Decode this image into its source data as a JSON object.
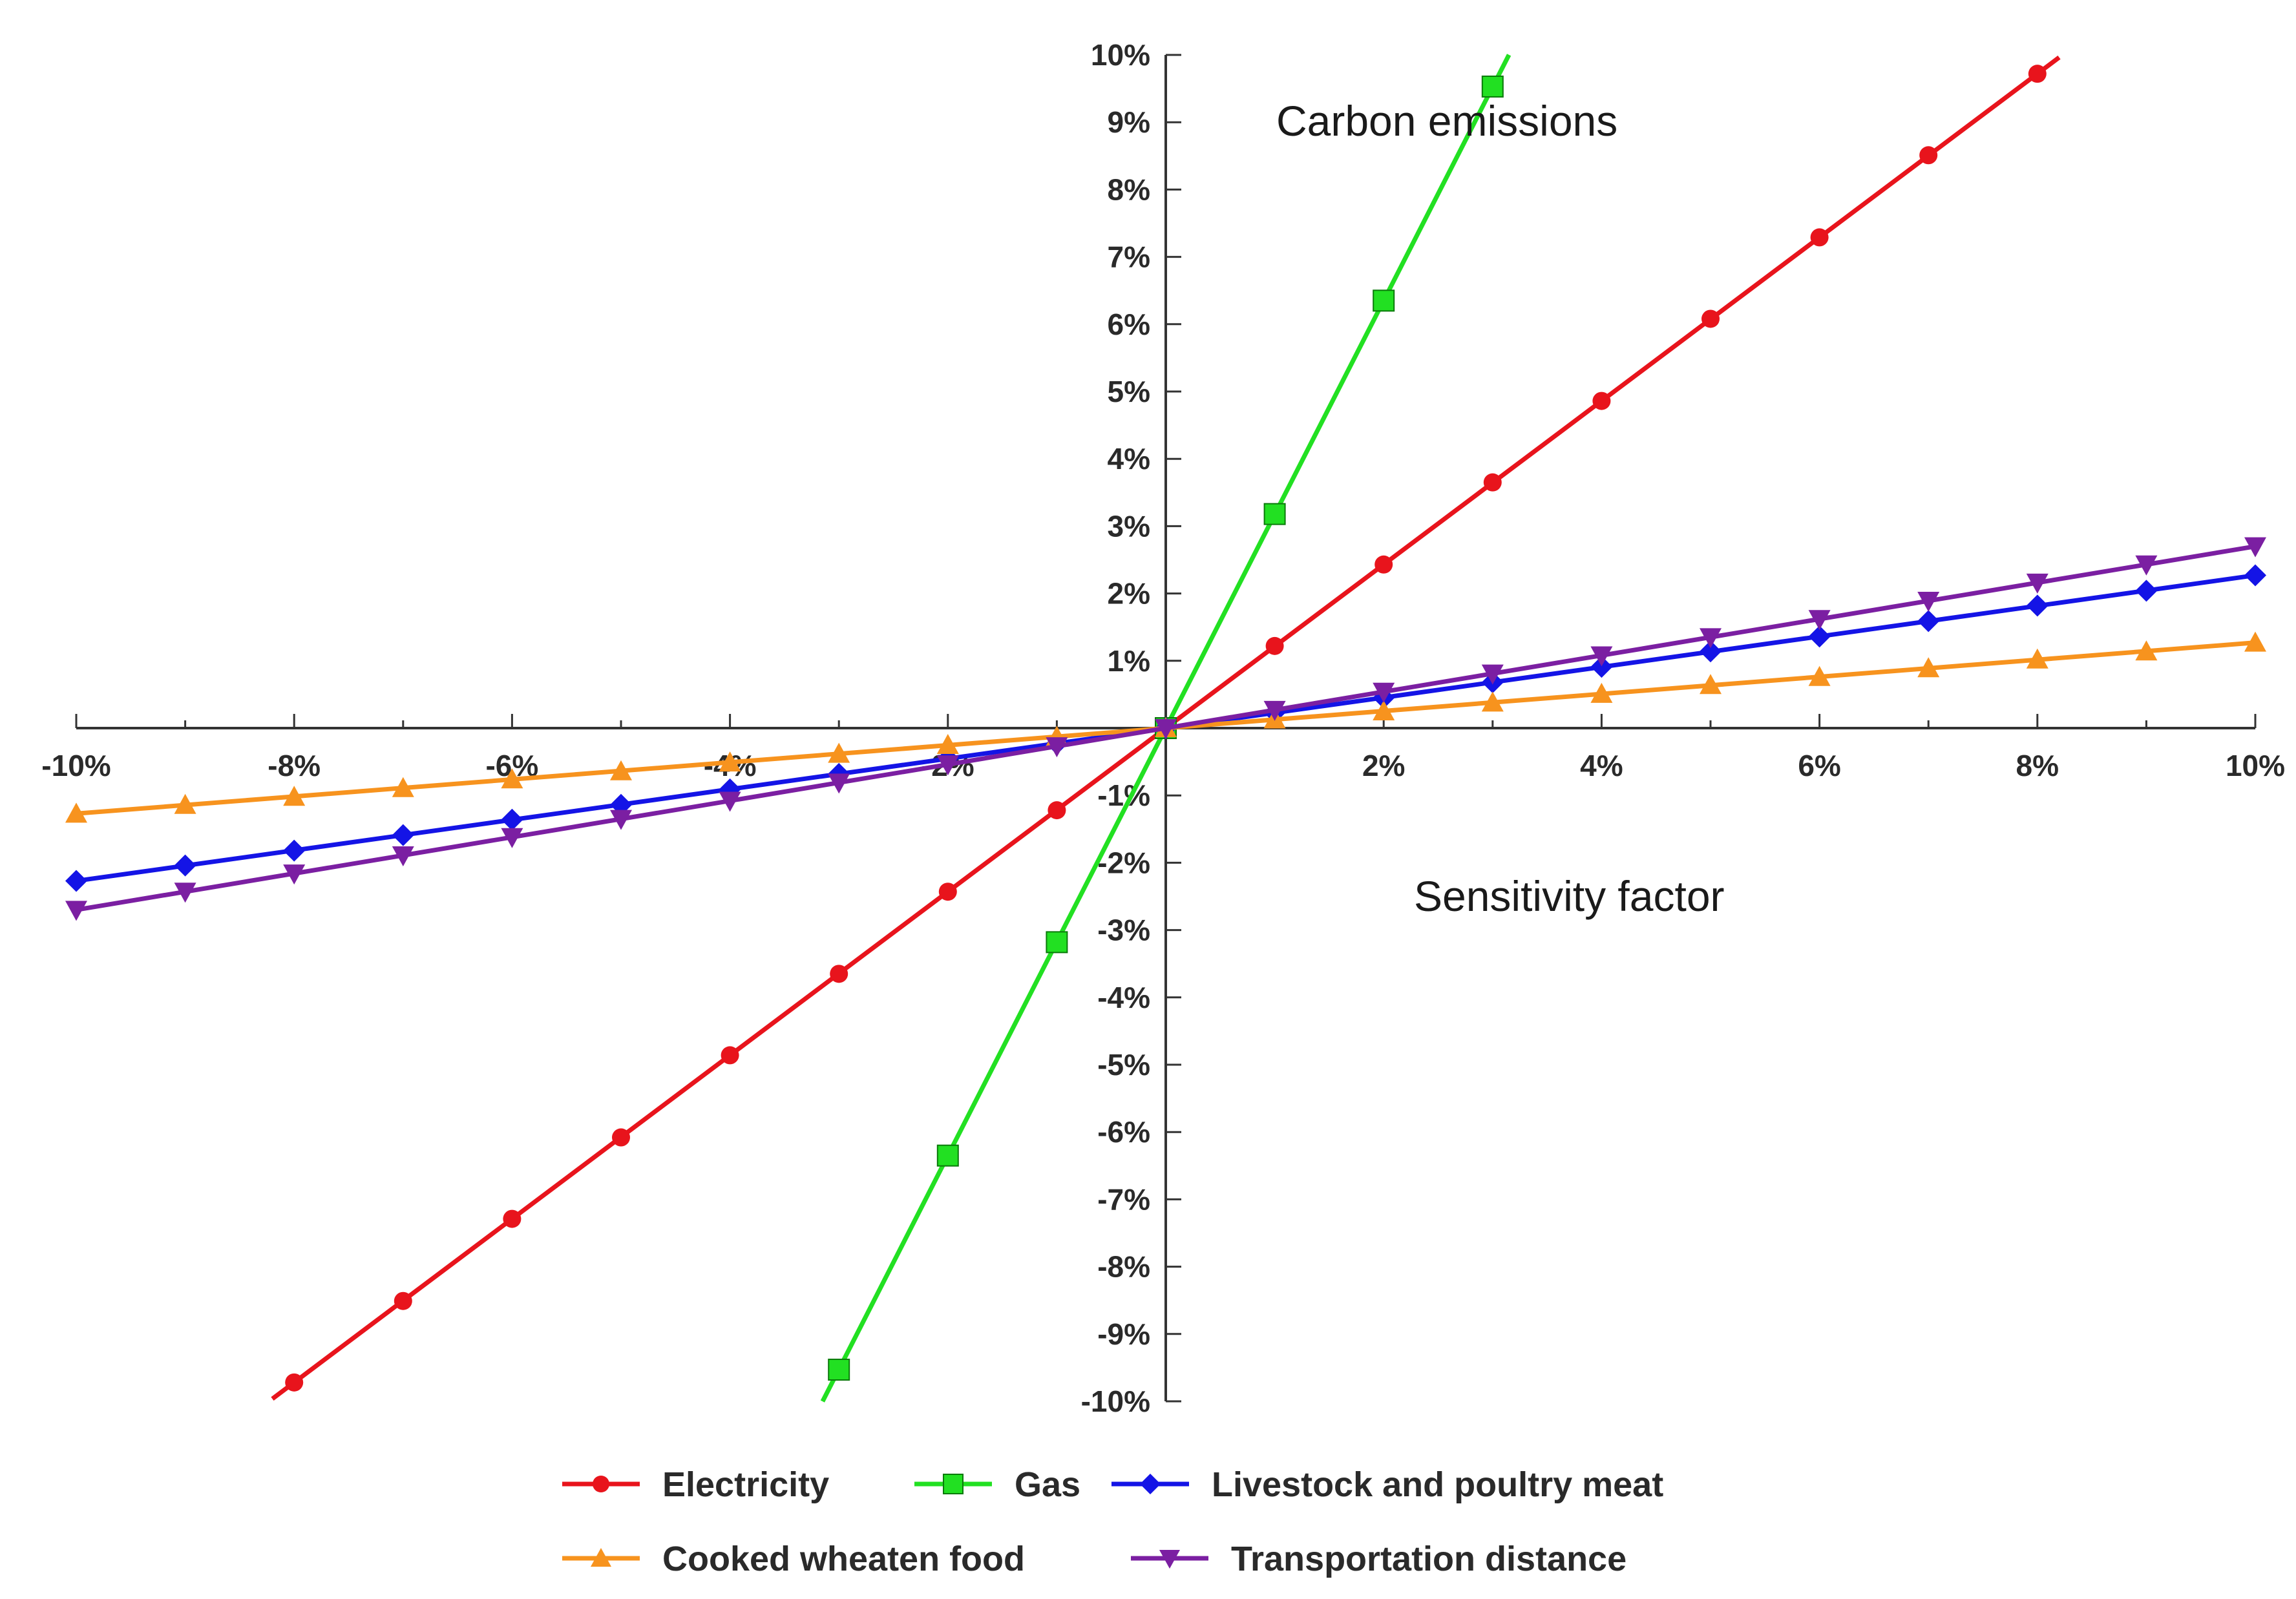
{
  "chart_data": {
    "type": "line",
    "title": "",
    "annotations": {
      "top": "Carbon emissions",
      "middle": "Sensitivity factor"
    },
    "xlabel": "",
    "ylabel": "",
    "xlim": [
      -10,
      10
    ],
    "ylim": [
      -10,
      10
    ],
    "x_ticks": [
      -10,
      -8,
      -6,
      -4,
      -2,
      2,
      4,
      6,
      8,
      10
    ],
    "x_tick_labels": [
      "-10%",
      "-8%",
      "-6%",
      "-4%",
      "-2%",
      "2%",
      "4%",
      "6%",
      "8%",
      "10%"
    ],
    "y_ticks": [
      10,
      9,
      8,
      7,
      6,
      5,
      4,
      3,
      2,
      1,
      -1,
      -2,
      -3,
      -4,
      -5,
      -6,
      -7,
      -8,
      -9,
      -10
    ],
    "y_tick_labels": [
      "10%",
      "9%",
      "8%",
      "7%",
      "6%",
      "5%",
      "4%",
      "3%",
      "2%",
      "1%",
      "-1%",
      "-2%",
      "-3%",
      "-4%",
      "-5%",
      "-6%",
      "-7%",
      "-8%",
      "-9%",
      "-10%"
    ],
    "grid": false,
    "legend_position": "bottom",
    "series": [
      {
        "name": "Electricity",
        "color": "#e8141c",
        "marker": "circle",
        "slope": 1.215,
        "line_x_range": [
          -8.2,
          8.2
        ],
        "x": [
          -8,
          -7,
          -6,
          -5,
          -4,
          -3,
          -2,
          -1,
          0,
          1,
          2,
          3,
          4,
          5,
          6,
          7,
          8
        ],
        "y": [
          -9.72,
          -8.51,
          -7.29,
          -6.08,
          -4.86,
          -3.65,
          -2.43,
          -1.22,
          0,
          1.22,
          2.43,
          3.65,
          4.86,
          6.08,
          7.29,
          8.51,
          9.72
        ]
      },
      {
        "name": "Gas",
        "color": "#22e022",
        "marker": "square",
        "slope": 3.175,
        "line_x_range": [
          -3.15,
          3.15
        ],
        "x": [
          -3,
          -2,
          -1,
          0,
          1,
          2,
          3
        ],
        "y": [
          -9.53,
          -6.35,
          -3.18,
          0,
          3.18,
          6.35,
          9.53
        ]
      },
      {
        "name": "Livestock and poultry meat",
        "color": "#1414e6",
        "marker": "diamond",
        "slope": 0.227,
        "line_x_range": [
          -10,
          10
        ],
        "x": [
          -10,
          -9,
          -8,
          -7,
          -6,
          -5,
          -4,
          -3,
          -2,
          -1,
          0,
          1,
          2,
          3,
          4,
          5,
          6,
          7,
          8,
          9,
          10
        ],
        "y": [
          -2.27,
          -2.04,
          -1.82,
          -1.59,
          -1.36,
          -1.14,
          -0.91,
          -0.68,
          -0.45,
          -0.23,
          0,
          0.23,
          0.45,
          0.68,
          0.91,
          1.14,
          1.36,
          1.59,
          1.82,
          2.04,
          2.27
        ]
      },
      {
        "name": "Cooked wheaten food",
        "color": "#f7931e",
        "marker": "triangle-up",
        "slope": 0.127,
        "line_x_range": [
          -10,
          10
        ],
        "x": [
          -10,
          -9,
          -8,
          -7,
          -6,
          -5,
          -4,
          -3,
          -2,
          -1,
          0,
          1,
          2,
          3,
          4,
          5,
          6,
          7,
          8,
          9,
          10
        ],
        "y": [
          -1.27,
          -1.14,
          -1.02,
          -0.89,
          -0.76,
          -0.64,
          -0.51,
          -0.38,
          -0.25,
          -0.13,
          0,
          0.13,
          0.25,
          0.38,
          0.51,
          0.64,
          0.76,
          0.89,
          1.02,
          1.14,
          1.27
        ]
      },
      {
        "name": "Transportation distance",
        "color": "#7b1fa2",
        "marker": "triangle-down",
        "slope": 0.27,
        "line_x_range": [
          -10,
          10
        ],
        "x": [
          -10,
          -9,
          -8,
          -7,
          -6,
          -5,
          -4,
          -3,
          -2,
          -1,
          0,
          1,
          2,
          3,
          4,
          5,
          6,
          7,
          8,
          9,
          10
        ],
        "y": [
          -2.7,
          -2.43,
          -2.16,
          -1.89,
          -1.62,
          -1.35,
          -1.08,
          -0.81,
          -0.54,
          -0.27,
          0,
          0.27,
          0.54,
          0.81,
          1.08,
          1.35,
          1.62,
          1.89,
          2.16,
          2.43,
          2.7
        ]
      }
    ]
  }
}
